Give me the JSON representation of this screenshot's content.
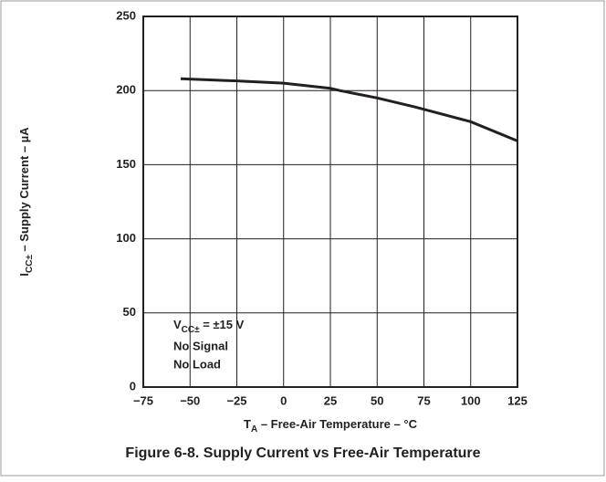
{
  "chart_data": {
    "type": "line",
    "title": "Figure 6-8. Supply Current vs Free-Air Temperature",
    "xlabel": {
      "main": "T",
      "sub": "A",
      "rest": " – Free-Air Temperature – °C"
    },
    "ylabel": {
      "main": "I",
      "sub": "CC±",
      "rest": " – Supply Current – µA"
    },
    "annotation": {
      "main": "V",
      "sub": "CC±",
      "rest": " = ±15 V",
      "lines": [
        "No Signal",
        "No Load"
      ]
    },
    "x": [
      -55,
      -25,
      0,
      25,
      30,
      50,
      70,
      100,
      125
    ],
    "series": [
      {
        "name": "Supply Current",
        "color": "#231f20",
        "values": [
          208,
          206.5,
          205,
          201.5,
          200,
          195,
          189,
          179,
          166
        ]
      }
    ],
    "xlim": [
      -75,
      125
    ],
    "xticks": [
      {
        "value": -75,
        "label": "−75"
      },
      {
        "value": -50,
        "label": "−50"
      },
      {
        "value": -25,
        "label": "−25"
      },
      0,
      25,
      50,
      75,
      100,
      125
    ],
    "ylim": [
      0,
      250
    ],
    "yticks": [
      0,
      50,
      100,
      150,
      200,
      250
    ],
    "grid": true
  }
}
